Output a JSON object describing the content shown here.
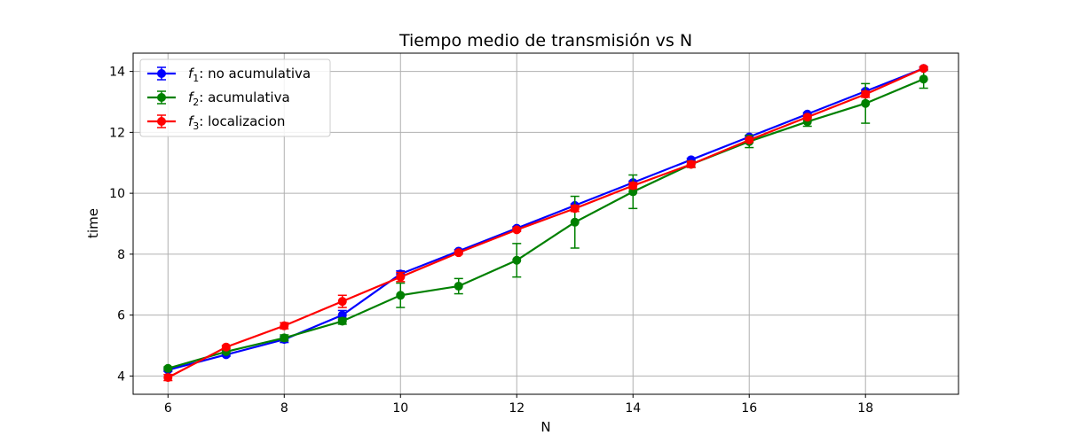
{
  "chart_data": {
    "type": "line",
    "title": "Tiempo medio de transmisión  vs N",
    "xlabel": "N",
    "ylabel": "time",
    "xlim": [
      5.4,
      19.6
    ],
    "ylim": [
      3.4,
      14.6
    ],
    "xticks": [
      6,
      8,
      10,
      12,
      14,
      16,
      18
    ],
    "yticks": [
      4,
      6,
      8,
      10,
      12,
      14
    ],
    "grid": true,
    "legend_position": "top-left",
    "x": [
      6,
      7,
      8,
      9,
      10,
      11,
      12,
      13,
      14,
      15,
      16,
      17,
      18,
      19
    ],
    "series": [
      {
        "name": "f1: no acumulativa",
        "legend_sub_base": "f",
        "legend_sub_index": "1",
        "legend_rest": ": no acumulativa",
        "color": "#0000ff",
        "values": [
          4.2,
          4.7,
          5.2,
          6.0,
          7.35,
          8.1,
          8.85,
          9.6,
          10.35,
          11.1,
          11.85,
          12.6,
          13.35,
          14.1
        ],
        "errors": [
          0.05,
          0.05,
          0.1,
          0.15,
          0.1,
          0.05,
          0.05,
          0.05,
          0.05,
          0.05,
          0.05,
          0.05,
          0.05,
          0.05
        ]
      },
      {
        "name": "f2: acumulativa",
        "legend_sub_base": "f",
        "legend_sub_index": "2",
        "legend_rest": ": acumulativa",
        "color": "#008000",
        "values": [
          4.25,
          4.8,
          5.25,
          5.8,
          6.65,
          6.95,
          7.8,
          9.05,
          10.05,
          10.95,
          11.7,
          12.35,
          12.95,
          13.75
        ],
        "errors": [
          0.05,
          0.05,
          0.1,
          0.1,
          0.4,
          0.25,
          0.55,
          0.85,
          0.55,
          0.1,
          0.2,
          0.15,
          0.65,
          0.3
        ]
      },
      {
        "name": "f3: localizacion",
        "legend_sub_base": "f",
        "legend_sub_index": "3",
        "legend_rest": ": localizacion",
        "color": "#ff0000",
        "values": [
          3.95,
          4.95,
          5.65,
          6.45,
          7.25,
          8.05,
          8.8,
          9.5,
          10.25,
          10.95,
          11.75,
          12.5,
          13.25,
          14.1
        ],
        "errors": [
          0.1,
          0.05,
          0.1,
          0.2,
          0.15,
          0.05,
          0.05,
          0.1,
          0.1,
          0.1,
          0.05,
          0.05,
          0.1,
          0.05
        ]
      }
    ]
  }
}
